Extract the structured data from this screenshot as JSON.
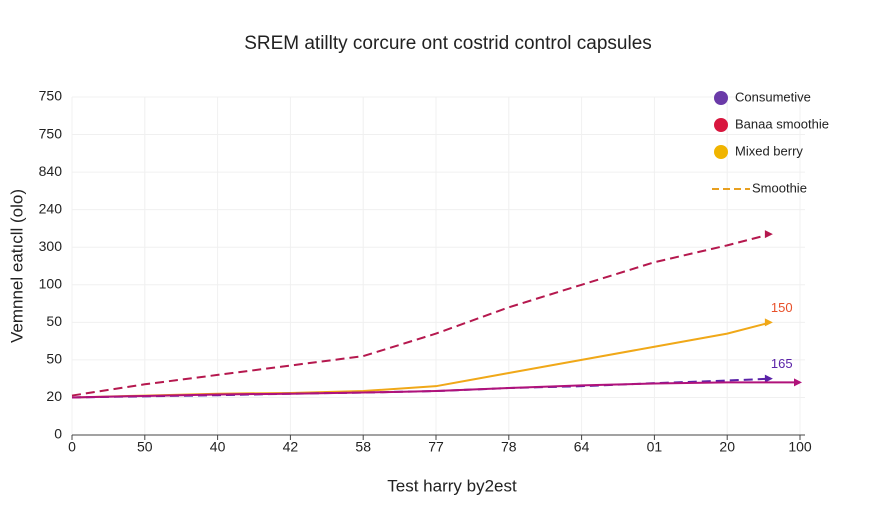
{
  "chart_data": {
    "type": "line",
    "title": "SREM atillty corcure ont costrid control capsules",
    "x_label": "Test harry by2est",
    "y_label": "Vemnnel eatıcll (olo)",
    "xlim": [
      0,
      10
    ],
    "ylim": [
      0,
      9
    ],
    "grid": true,
    "xticks": [
      {
        "value": 0,
        "label": "0"
      },
      {
        "value": 1,
        "label": "50"
      },
      {
        "value": 2,
        "label": "40"
      },
      {
        "value": 3,
        "label": "42"
      },
      {
        "value": 4,
        "label": "58"
      },
      {
        "value": 5,
        "label": "77"
      },
      {
        "value": 6,
        "label": "78"
      },
      {
        "value": 7,
        "label": "64"
      },
      {
        "value": 8,
        "label": "01"
      },
      {
        "value": 9,
        "label": "20"
      },
      {
        "value": 10,
        "label": "100"
      }
    ],
    "yticks": [
      {
        "value": 0,
        "label": "0"
      },
      {
        "value": 1,
        "label": "20"
      },
      {
        "value": 2,
        "label": "50"
      },
      {
        "value": 3,
        "label": "50"
      },
      {
        "value": 4,
        "label": "100"
      },
      {
        "value": 5,
        "label": "300"
      },
      {
        "value": 6,
        "label": "240"
      },
      {
        "value": 7,
        "label": "840"
      },
      {
        "value": 8,
        "label": "750"
      },
      {
        "value": 9,
        "label": "750"
      }
    ],
    "series": [
      {
        "color": "#b5184e",
        "dash": true,
        "x": [
          0,
          1,
          2,
          3,
          4,
          5,
          6,
          7,
          8,
          9,
          9.6
        ],
        "values": [
          1.05,
          1.35,
          1.6,
          1.85,
          2.1,
          2.7,
          3.4,
          4.0,
          4.6,
          5.05,
          5.35
        ]
      },
      {
        "color": "#f0a818",
        "dash": false,
        "x": [
          0,
          1,
          2,
          3,
          4,
          5,
          6,
          7,
          8,
          9,
          9.6
        ],
        "values": [
          1.0,
          1.05,
          1.1,
          1.12,
          1.17,
          1.3,
          1.65,
          2.0,
          2.35,
          2.7,
          3.0
        ],
        "end_label": "150",
        "end_label_color": "#e8502a"
      },
      {
        "color": "#5a22a8",
        "dash": true,
        "x": [
          0,
          1,
          2,
          3,
          4,
          5,
          6,
          7,
          8,
          9,
          9.6
        ],
        "values": [
          1.0,
          1.03,
          1.06,
          1.1,
          1.13,
          1.17,
          1.25,
          1.3,
          1.38,
          1.45,
          1.5
        ],
        "end_label": "165",
        "end_label_color": "#5a22a8"
      },
      {
        "color": "#b0127a",
        "dash": false,
        "x": [
          0,
          1,
          2,
          3,
          4,
          5,
          6,
          7,
          8,
          9,
          10
        ],
        "values": [
          1.0,
          1.04,
          1.08,
          1.1,
          1.13,
          1.17,
          1.25,
          1.32,
          1.37,
          1.4,
          1.4
        ]
      }
    ],
    "legend": [
      {
        "name": "Consumetive",
        "color": "#6a3aa8",
        "marker": "dot"
      },
      {
        "name": "Banaa smoothie",
        "color": "#d8163e",
        "marker": "dot"
      },
      {
        "name": "Mixed berry",
        "color": "#f0b400",
        "marker": "dot"
      },
      {
        "name": "Smoothie",
        "color": "#e8a020",
        "marker": "dash"
      }
    ]
  }
}
